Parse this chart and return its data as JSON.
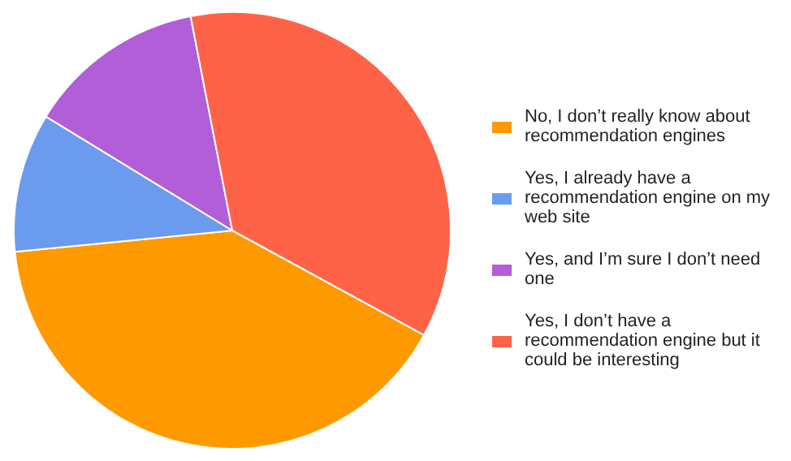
{
  "chart_data": {
    "type": "pie",
    "categories": [
      "No, I don’t really know about recommendation engines",
      "Yes, I already have a recommendation engine on my web site",
      "Yes, and I’m sure I don’t need one",
      "Yes, I don’t have a recommendation engine but it could be interesting"
    ],
    "values": [
      40.5,
      10.3,
      13.2,
      36
    ],
    "colors": [
      "#ff9900",
      "#6b9bef",
      "#b25ed8",
      "#ff6347"
    ],
    "legend": "right"
  }
}
